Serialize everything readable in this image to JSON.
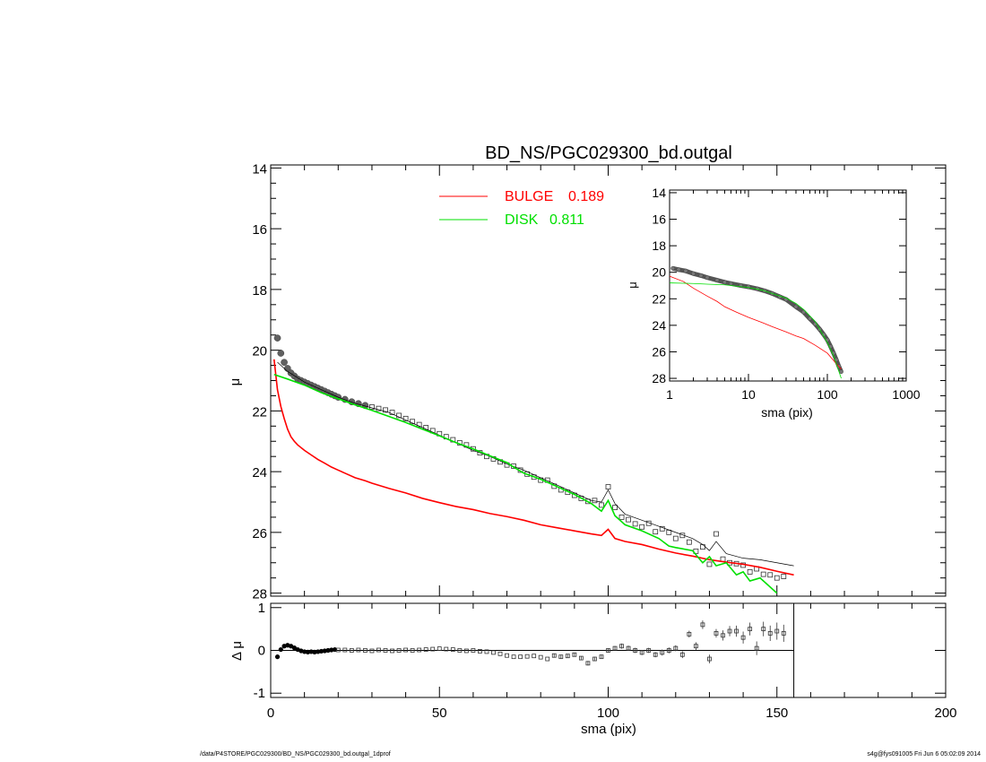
{
  "chart_data": [
    {
      "type": "line",
      "panel": "main",
      "title": "BD_NS/PGC029300_bd.outgal",
      "xlabel": "",
      "ylabel": "μ",
      "xlim": [
        0,
        200
      ],
      "ylim": [
        28.1,
        13.9
      ],
      "yticks": [
        14,
        16,
        18,
        20,
        22,
        24,
        26,
        28
      ],
      "legend": [
        {
          "name": "BULGE",
          "value": "0.189",
          "color": "#ff0000"
        },
        {
          "name": "DISK",
          "value": "0.811",
          "color": "#00e000"
        }
      ],
      "series": [
        {
          "name": "observed",
          "kind": "markers",
          "x": [
            2,
            3,
            4,
            5,
            6,
            7,
            8,
            9,
            10,
            11,
            12,
            13,
            14,
            15,
            16,
            17,
            18,
            19,
            20,
            22,
            24,
            26,
            28,
            30,
            32,
            34,
            36,
            38,
            40,
            42,
            44,
            46,
            48,
            50,
            52,
            54,
            56,
            58,
            60,
            62,
            64,
            66,
            68,
            70,
            72,
            74,
            76,
            78,
            80,
            82,
            84,
            86,
            88,
            90,
            92,
            94,
            96,
            98,
            100,
            102,
            104,
            106,
            108,
            110,
            112,
            114,
            116,
            118,
            120,
            122,
            124,
            126,
            128,
            130,
            132,
            134,
            136,
            138,
            140,
            142,
            144,
            146,
            148,
            150,
            152
          ],
          "y": [
            19.6,
            20.1,
            20.4,
            20.6,
            20.75,
            20.85,
            20.95,
            21.0,
            21.05,
            21.1,
            21.15,
            21.2,
            21.25,
            21.3,
            21.35,
            21.4,
            21.45,
            21.5,
            21.55,
            21.62,
            21.7,
            21.76,
            21.82,
            21.87,
            21.92,
            21.97,
            22.05,
            22.15,
            22.25,
            22.35,
            22.45,
            22.55,
            22.65,
            22.75,
            22.85,
            22.95,
            23.05,
            23.12,
            23.25,
            23.38,
            23.5,
            23.58,
            23.68,
            23.78,
            23.82,
            23.95,
            24.08,
            24.18,
            24.28,
            24.28,
            24.48,
            24.6,
            24.68,
            24.78,
            24.88,
            24.98,
            24.95,
            25.1,
            24.5,
            25.18,
            25.5,
            25.58,
            25.72,
            25.82,
            25.7,
            25.98,
            25.88,
            26.0,
            26.2,
            26.1,
            26.32,
            26.62,
            26.48,
            27.05,
            26.05,
            26.88,
            27.0,
            27.03,
            27.08,
            27.3,
            27.2,
            27.38,
            27.4,
            27.5,
            27.45
          ]
        },
        {
          "name": "model",
          "kind": "thin-line",
          "x": [
            2,
            5,
            10,
            15,
            20,
            25,
            30,
            35,
            40,
            45,
            50,
            55,
            60,
            65,
            70,
            75,
            80,
            85,
            90,
            95,
            98,
            100,
            102,
            105,
            110,
            115,
            120,
            125,
            128,
            130,
            132,
            135,
            140,
            145,
            150,
            155
          ],
          "y": [
            20.4,
            20.7,
            21.05,
            21.3,
            21.55,
            21.75,
            21.9,
            22.05,
            22.3,
            22.55,
            22.8,
            23.05,
            23.3,
            23.5,
            23.75,
            23.95,
            24.2,
            24.45,
            24.7,
            24.95,
            25.0,
            24.6,
            25.05,
            25.4,
            25.6,
            25.8,
            26.0,
            26.2,
            26.4,
            26.6,
            26.3,
            26.7,
            26.85,
            26.9,
            27.0,
            27.1
          ]
        },
        {
          "name": "BULGE",
          "kind": "line",
          "color": "#ff0000",
          "x": [
            1,
            2,
            3,
            4,
            5,
            6,
            7,
            8,
            10,
            12,
            14,
            16,
            18,
            20,
            22,
            25,
            28,
            30,
            35,
            40,
            45,
            50,
            55,
            60,
            65,
            70,
            75,
            80,
            85,
            90,
            95,
            98,
            100,
            102,
            105,
            110,
            115,
            120,
            125,
            130,
            135,
            140,
            145,
            150,
            155
          ],
          "y": [
            20.3,
            21.3,
            21.85,
            22.25,
            22.6,
            22.85,
            23.0,
            23.12,
            23.3,
            23.45,
            23.6,
            23.72,
            23.85,
            23.95,
            24.05,
            24.2,
            24.3,
            24.38,
            24.55,
            24.7,
            24.88,
            25.02,
            25.15,
            25.25,
            25.38,
            25.48,
            25.6,
            25.75,
            25.85,
            25.95,
            26.05,
            26.1,
            25.9,
            26.2,
            26.3,
            26.4,
            26.55,
            26.68,
            26.78,
            26.9,
            26.98,
            27.05,
            27.15,
            27.28,
            27.4
          ]
        },
        {
          "name": "DISK",
          "kind": "line",
          "color": "#00e000",
          "x": [
            1,
            5,
            10,
            15,
            20,
            25,
            30,
            35,
            40,
            45,
            50,
            55,
            60,
            65,
            70,
            72,
            75,
            80,
            85,
            90,
            95,
            98,
            100,
            102,
            105,
            110,
            115,
            118,
            120,
            125,
            128,
            130,
            132,
            135,
            138,
            140,
            142,
            145,
            150
          ],
          "y": [
            20.8,
            20.95,
            21.15,
            21.4,
            21.6,
            21.8,
            21.98,
            22.18,
            22.38,
            22.6,
            22.82,
            23.05,
            23.25,
            23.48,
            23.7,
            23.85,
            24.05,
            24.25,
            24.5,
            24.75,
            25.05,
            25.3,
            24.95,
            25.45,
            25.75,
            25.95,
            26.2,
            26.45,
            26.5,
            26.6,
            27.0,
            26.8,
            27.1,
            27.0,
            27.4,
            27.3,
            27.6,
            27.5,
            28.0
          ]
        }
      ],
      "legend_placement": "top-center",
      "grid": false
    },
    {
      "type": "line",
      "panel": "inset",
      "xlabel": "sma (pix)",
      "ylabel": "μ",
      "xscale": "log",
      "xlim": [
        1,
        1000
      ],
      "ylim": [
        28.2,
        13.8
      ],
      "xticks": [
        "1",
        "10",
        "100",
        "1000"
      ],
      "yticks": [
        14,
        16,
        18,
        20,
        22,
        24,
        26,
        28
      ],
      "series": [
        {
          "name": "observed",
          "kind": "markers",
          "x": [
            1.1,
            1.3,
            1.6,
            2,
            2.5,
            3,
            4,
            5,
            6,
            8,
            10,
            13,
            16,
            20,
            25,
            30,
            40,
            50,
            60,
            70,
            80,
            90,
            100,
            110,
            120,
            130,
            140,
            150
          ],
          "y": [
            19.7,
            19.8,
            19.9,
            20.1,
            20.25,
            20.4,
            20.6,
            20.75,
            20.85,
            21.0,
            21.1,
            21.25,
            21.4,
            21.6,
            21.85,
            22.05,
            22.6,
            23.0,
            23.5,
            23.9,
            24.3,
            24.7,
            25.1,
            25.6,
            26.1,
            26.6,
            27.1,
            27.5
          ]
        },
        {
          "name": "BULGE",
          "kind": "line",
          "color": "#ff0000",
          "x": [
            1,
            1.5,
            2,
            3,
            4,
            5,
            7,
            10,
            15,
            20,
            30,
            40,
            50,
            70,
            100,
            130,
            150
          ],
          "y": [
            20.3,
            20.7,
            21.2,
            21.8,
            22.2,
            22.6,
            23.0,
            23.4,
            23.8,
            24.1,
            24.5,
            24.8,
            25.0,
            25.5,
            26.1,
            26.9,
            27.3
          ]
        },
        {
          "name": "DISK",
          "kind": "line",
          "color": "#00e000",
          "x": [
            1,
            2,
            3,
            5,
            10,
            15,
            20,
            30,
            40,
            50,
            70,
            100,
            120,
            150
          ],
          "y": [
            20.8,
            20.85,
            20.9,
            20.95,
            21.15,
            21.35,
            21.6,
            21.95,
            22.35,
            22.8,
            23.7,
            25.3,
            26.3,
            28.0
          ]
        }
      ]
    },
    {
      "type": "scatter",
      "panel": "residuals",
      "xlabel": "sma (pix)",
      "ylabel": "Δ μ",
      "xlim": [
        0,
        200
      ],
      "ylim": [
        -1.1,
        1.1
      ],
      "xticks": [
        0,
        50,
        100,
        150,
        200
      ],
      "yticks": [
        -1,
        0,
        1
      ],
      "series": [
        {
          "name": "residual",
          "x": [
            2,
            3,
            4,
            5,
            6,
            7,
            8,
            9,
            10,
            11,
            12,
            13,
            14,
            15,
            16,
            17,
            18,
            19,
            20,
            22,
            24,
            26,
            28,
            30,
            32,
            34,
            36,
            38,
            40,
            42,
            44,
            46,
            48,
            50,
            52,
            54,
            56,
            58,
            60,
            62,
            64,
            66,
            68,
            70,
            72,
            74,
            76,
            78,
            80,
            82,
            84,
            86,
            88,
            90,
            92,
            94,
            96,
            98,
            100,
            102,
            104,
            106,
            108,
            110,
            112,
            114,
            116,
            118,
            120,
            122,
            124,
            126,
            128,
            130,
            132,
            134,
            136,
            138,
            140,
            142,
            144,
            146,
            148,
            150,
            152
          ],
          "y": [
            -0.15,
            0.02,
            0.1,
            0.12,
            0.1,
            0.06,
            0.02,
            -0.01,
            -0.03,
            -0.04,
            -0.03,
            -0.04,
            -0.03,
            -0.02,
            -0.01,
            0.0,
            0.01,
            0.02,
            0.01,
            0.01,
            0.0,
            0.01,
            0.0,
            -0.01,
            0.01,
            0.0,
            -0.01,
            0.0,
            0.01,
            0.0,
            0.01,
            0.02,
            0.03,
            0.04,
            0.03,
            0.02,
            0.0,
            -0.01,
            0.0,
            -0.02,
            -0.03,
            -0.05,
            -0.08,
            -0.12,
            -0.15,
            -0.15,
            -0.14,
            -0.13,
            -0.16,
            -0.2,
            -0.12,
            -0.15,
            -0.13,
            -0.1,
            -0.18,
            -0.3,
            -0.2,
            -0.15,
            0.0,
            0.05,
            0.1,
            0.05,
            0.0,
            -0.05,
            0.0,
            -0.1,
            -0.05,
            0.0,
            0.05,
            -0.1,
            0.38,
            0.1,
            0.6,
            -0.2,
            0.4,
            0.35,
            0.45,
            0.45,
            0.3,
            0.5,
            0.05,
            0.5,
            0.4,
            0.45,
            0.4
          ],
          "yerr": [
            0.02,
            0.02,
            0.02,
            0.02,
            0.02,
            0.02,
            0.02,
            0.02,
            0.02,
            0.02,
            0.02,
            0.02,
            0.02,
            0.02,
            0.02,
            0.02,
            0.02,
            0.02,
            0.02,
            0.02,
            0.02,
            0.02,
            0.02,
            0.02,
            0.02,
            0.02,
            0.02,
            0.02,
            0.02,
            0.02,
            0.02,
            0.02,
            0.02,
            0.02,
            0.02,
            0.02,
            0.02,
            0.02,
            0.02,
            0.02,
            0.03,
            0.03,
            0.03,
            0.03,
            0.03,
            0.03,
            0.03,
            0.03,
            0.03,
            0.03,
            0.04,
            0.04,
            0.04,
            0.04,
            0.04,
            0.05,
            0.05,
            0.05,
            0.05,
            0.05,
            0.06,
            0.06,
            0.06,
            0.06,
            0.06,
            0.06,
            0.07,
            0.07,
            0.07,
            0.08,
            0.08,
            0.09,
            0.1,
            0.1,
            0.1,
            0.12,
            0.12,
            0.13,
            0.14,
            0.15,
            0.16,
            0.17,
            0.18,
            0.2,
            0.2
          ]
        }
      ],
      "model_extent_x": 155
    }
  ],
  "footer": {
    "left": "/data/P4STORE/PGC029300/BD_NS/PGC029300_bd.outgal_1dprof",
    "right": "s4g@fys091005  Fri Jun  6 05:02:09 2014"
  }
}
